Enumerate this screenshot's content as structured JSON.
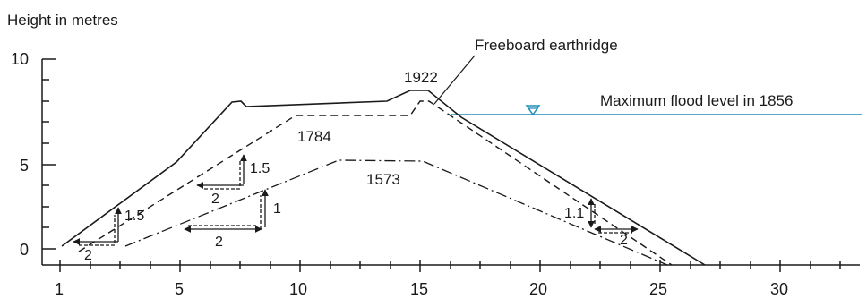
{
  "diagram": {
    "y_axis_title": "Height in metres",
    "y_ticks": [
      "10",
      "5",
      "0"
    ],
    "x_ticks": [
      "1",
      "5",
      "10",
      "15",
      "20",
      "25",
      "30"
    ],
    "profiles": [
      {
        "year": "1922",
        "style": "solid"
      },
      {
        "year": "1784",
        "style": "dashed"
      },
      {
        "year": "1573",
        "style": "dash-dot"
      }
    ],
    "annotations": {
      "freeboard": "Freeboard earthridge",
      "flood_level": "Maximum flood level in 1856"
    },
    "slope_labels": {
      "left_outer_rise": "1.5",
      "left_outer_run": "2",
      "left_mid_rise": "1.5",
      "left_mid_run": "2",
      "left_inner_rise": "1",
      "left_inner_run": "2",
      "right_rise": "1.1",
      "right_run": "2"
    },
    "colors": {
      "flood_line": "#1f8fb5",
      "ink": "#1a1a1a"
    }
  }
}
